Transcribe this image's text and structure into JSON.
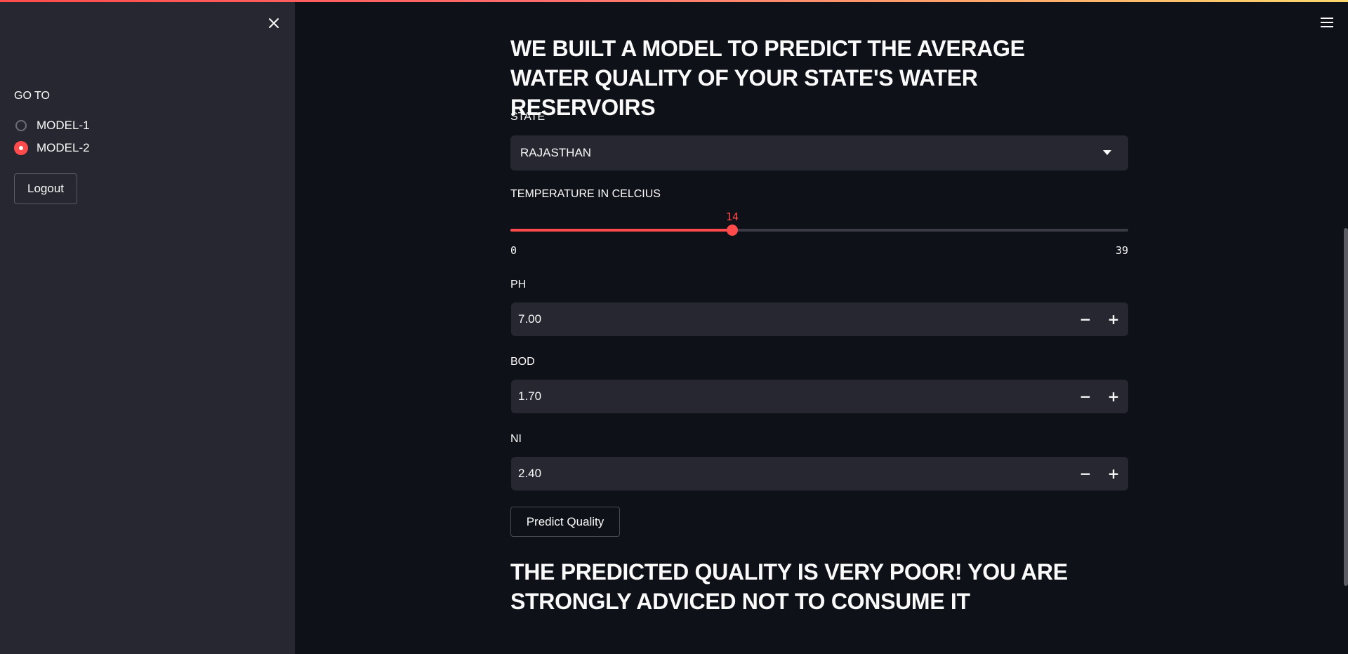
{
  "sidebar": {
    "goto_label": "GO TO",
    "options": [
      {
        "label": "MODEL-1",
        "selected": false
      },
      {
        "label": "MODEL-2",
        "selected": true
      }
    ],
    "logout_label": "Logout"
  },
  "main": {
    "title": "WE BUILT A MODEL TO PREDICT THE AVERAGE WATER QUALITY OF YOUR STATE'S WATER RESERVOIRS",
    "state": {
      "label": "STATE",
      "selected": "RAJASTHAN"
    },
    "temperature": {
      "label": "TEMPERATURE IN CELCIUS",
      "value": "14",
      "min": "0",
      "max": "39"
    },
    "ph": {
      "label": "PH",
      "value": "7.00"
    },
    "bod": {
      "label": "BOD",
      "value": "1.70"
    },
    "ni": {
      "label": "NI",
      "value": "2.40"
    },
    "predict_label": "Predict Quality",
    "result": "THE PREDICTED QUALITY IS VERY POOR! YOU ARE STRONGLY ADVICED NOT TO CONSUME IT"
  },
  "icons": {
    "close": "close-icon",
    "menu": "hamburger-menu-icon",
    "select_caret": "chevron-down-icon",
    "minus": "minus-icon",
    "plus": "plus-icon"
  },
  "colors": {
    "accent": "#ff4b4b",
    "background": "#0e1117",
    "sidebar": "#262730",
    "input": "#262730",
    "text": "#fafafa"
  }
}
